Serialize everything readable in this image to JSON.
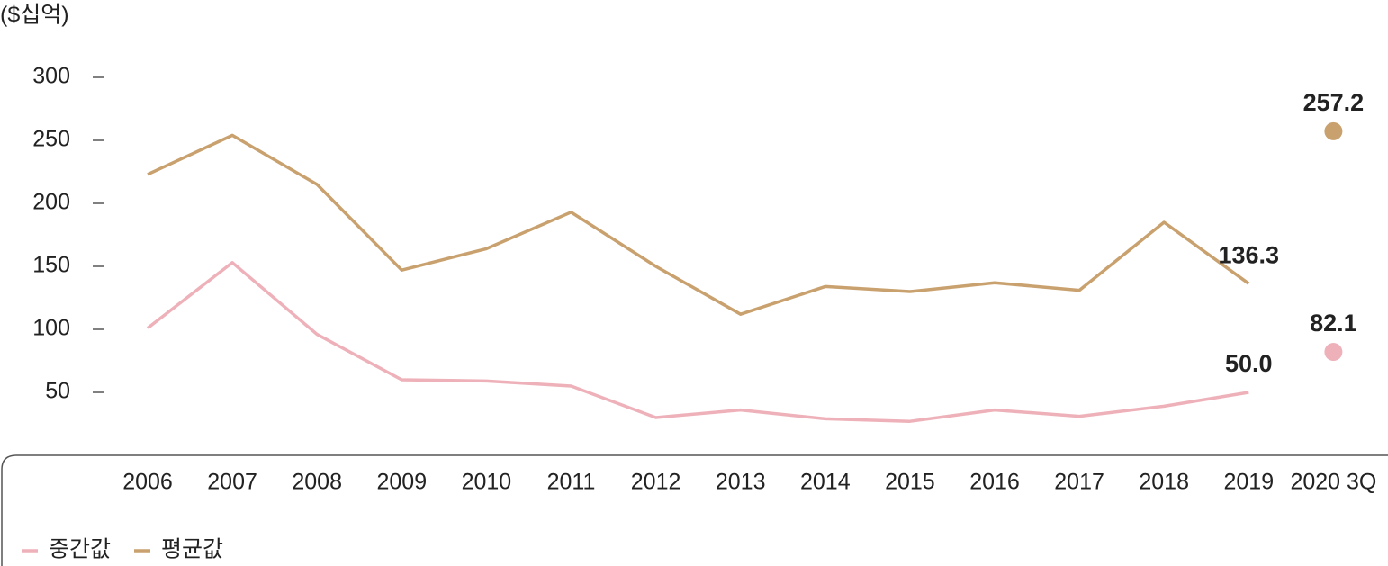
{
  "chart_data": {
    "type": "line",
    "y_label": "($십억)",
    "categories": [
      "2006",
      "2007",
      "2008",
      "2009",
      "2010",
      "2011",
      "2012",
      "2013",
      "2014",
      "2015",
      "2016",
      "2017",
      "2018",
      "2019",
      "2020 3Q"
    ],
    "series": [
      {
        "name": "중간값",
        "color": "#eeb1b9",
        "values": [
          101,
          153,
          96,
          60,
          59,
          55,
          30,
          36,
          29,
          27,
          36,
          31,
          39,
          50.0,
          82.1
        ],
        "value_labels": [
          null,
          null,
          null,
          null,
          null,
          null,
          null,
          null,
          null,
          null,
          null,
          null,
          null,
          "50.0",
          "82.1"
        ]
      },
      {
        "name": "평균값",
        "color": "#c9a16e",
        "values": [
          223,
          254,
          215,
          147,
          164,
          193,
          150,
          112,
          134,
          130,
          137,
          131,
          185,
          136.3,
          257.2
        ],
        "value_labels": [
          null,
          null,
          null,
          null,
          null,
          null,
          null,
          null,
          null,
          null,
          null,
          null,
          null,
          "136.3",
          "257.2"
        ]
      }
    ],
    "ylim": [
      0,
      300
    ],
    "yticks": [
      50,
      100,
      150,
      200,
      250,
      300
    ],
    "grid": false,
    "legend": "bottom-left"
  }
}
